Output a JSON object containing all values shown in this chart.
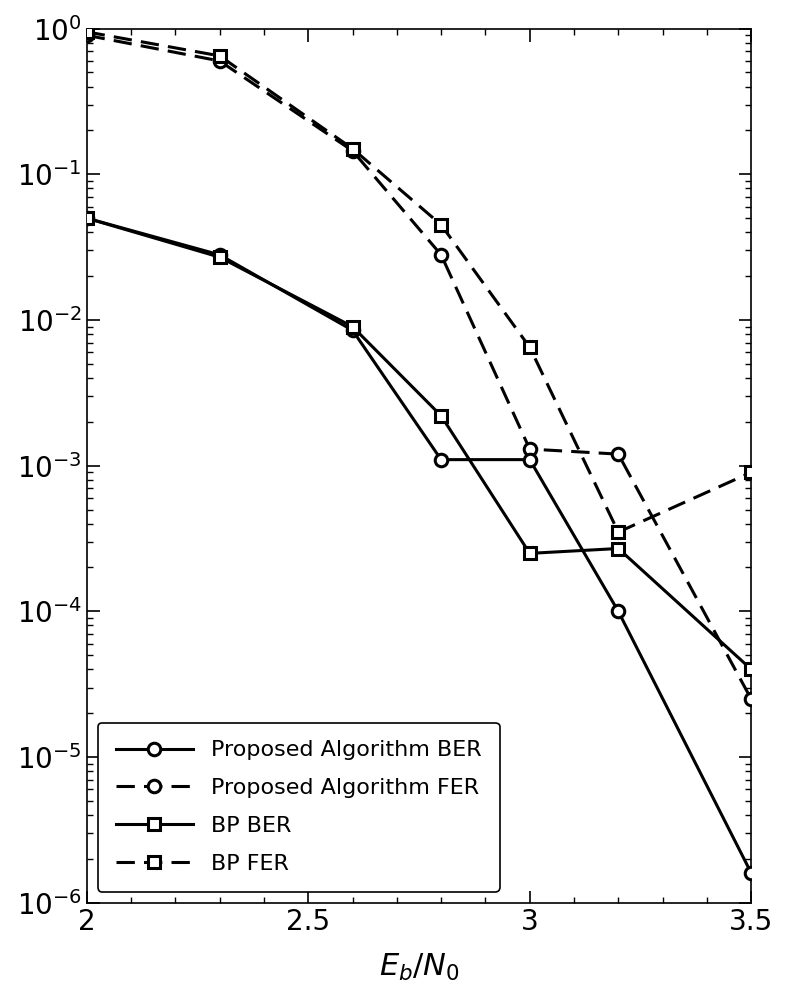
{
  "proposed_ber_x": [
    2.0,
    2.3,
    2.6,
    2.8,
    3.0,
    3.2,
    3.5
  ],
  "proposed_ber_y": [
    0.05,
    0.028,
    0.0085,
    0.0011,
    0.0011,
    0.0001,
    1.6e-06
  ],
  "proposed_fer_x": [
    2.0,
    2.3,
    2.6,
    2.8,
    3.0,
    3.2,
    3.5
  ],
  "proposed_fer_y": [
    0.9,
    0.6,
    0.145,
    0.028,
    0.0013,
    0.0012,
    2.5e-05
  ],
  "bp_ber_x": [
    2.0,
    2.3,
    2.6,
    2.8,
    3.0,
    3.2,
    3.5
  ],
  "bp_ber_y": [
    0.05,
    0.027,
    0.009,
    0.0022,
    0.00025,
    0.00027,
    4e-05
  ],
  "bp_fer_x": [
    2.0,
    2.3,
    2.6,
    2.8,
    3.0,
    3.2,
    3.5
  ],
  "bp_fer_y": [
    0.95,
    0.65,
    0.15,
    0.045,
    0.0065,
    0.00035,
    0.0009
  ],
  "xlim": [
    2.0,
    3.5
  ],
  "ylim": [
    1e-06,
    1.0
  ],
  "xlabel": "E_b/N_0",
  "xticks": [
    2.0,
    2.5,
    3.0,
    3.5
  ],
  "xtick_labels": [
    "2",
    "2.5",
    "3",
    "3.5"
  ],
  "legend_labels": [
    "Proposed Algorithm BER",
    "Proposed Algorithm FER",
    "BP BER",
    "BP FER"
  ],
  "line_color": "#000000",
  "linewidth": 2.2,
  "markersize": 9
}
